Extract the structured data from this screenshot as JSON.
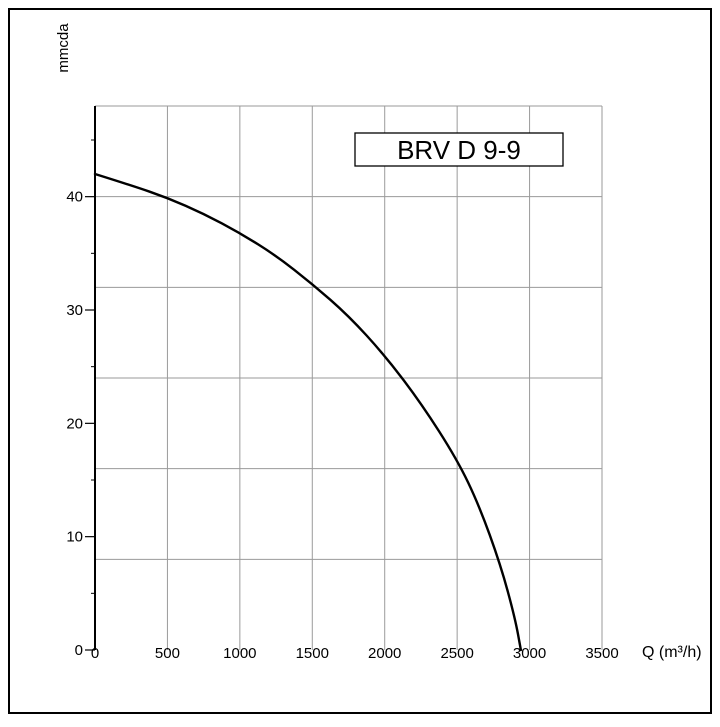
{
  "chart_data": {
    "type": "line",
    "title": "BRV D 9-9",
    "xlabel": "Q (m³/h)",
    "ylabel": "mmcda",
    "xlim": [
      0,
      3500
    ],
    "ylim": [
      0,
      48
    ],
    "grid": true,
    "x_ticks": [
      {
        "value": 0,
        "label": "0"
      },
      {
        "value": 500,
        "label": "500"
      },
      {
        "value": 1000,
        "label": "1000"
      },
      {
        "value": 1500,
        "label": "1500"
      },
      {
        "value": 2000,
        "label": "2000"
      },
      {
        "value": 2500,
        "label": "2500"
      },
      {
        "value": 3000,
        "label": "3000"
      },
      {
        "value": 3500,
        "label": "3500"
      }
    ],
    "y_ticks": [
      {
        "value": 0,
        "label": "0"
      },
      {
        "value": 10,
        "label": "10"
      },
      {
        "value": 20,
        "label": "20"
      },
      {
        "value": 30,
        "label": "30"
      },
      {
        "value": 40,
        "label": "40"
      }
    ],
    "series": [
      {
        "x": [
          0,
          250,
          500,
          750,
          1000,
          1250,
          1500,
          1750,
          2000,
          2250,
          2500,
          2650,
          2800,
          2900,
          2940
        ],
        "values": [
          42,
          41,
          39.9,
          38.5,
          36.8,
          34.8,
          32.3,
          29.5,
          26,
          21.8,
          16.8,
          12.8,
          7.5,
          2.8,
          0
        ],
        "color": "#000000"
      }
    ]
  },
  "colors": {
    "grid": "#9a9a9a",
    "axis": "#000000",
    "frame": "#000000"
  }
}
